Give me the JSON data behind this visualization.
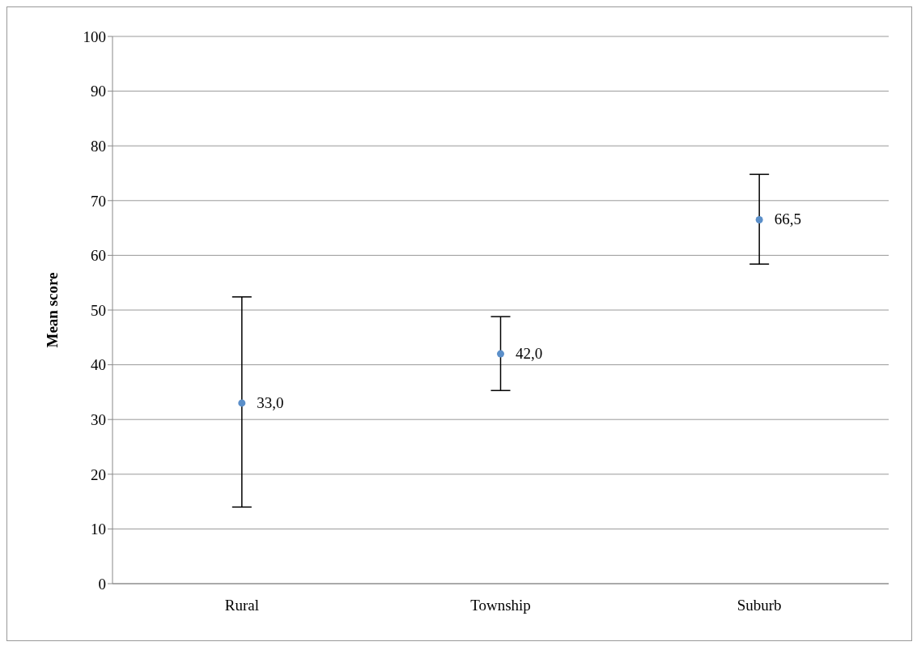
{
  "chart_data": {
    "type": "scatter",
    "ylabel": "Mean score",
    "categories": [
      "Rural",
      "Township",
      "Suburb"
    ],
    "series": [
      {
        "color": "#5b8fc9",
        "values": [
          33.0,
          42.0,
          66.5
        ],
        "errors": [
          [
            14.0,
            52.4
          ],
          [
            35.3,
            48.8
          ],
          [
            58.4,
            74.8
          ]
        ],
        "value_labels": [
          "33,0",
          "42,0",
          "66,5"
        ]
      }
    ],
    "ylim": [
      0,
      100
    ],
    "yticks": [
      0,
      10,
      20,
      30,
      40,
      50,
      60,
      70,
      80,
      90,
      100
    ],
    "grid": "y",
    "marker": "circle"
  }
}
